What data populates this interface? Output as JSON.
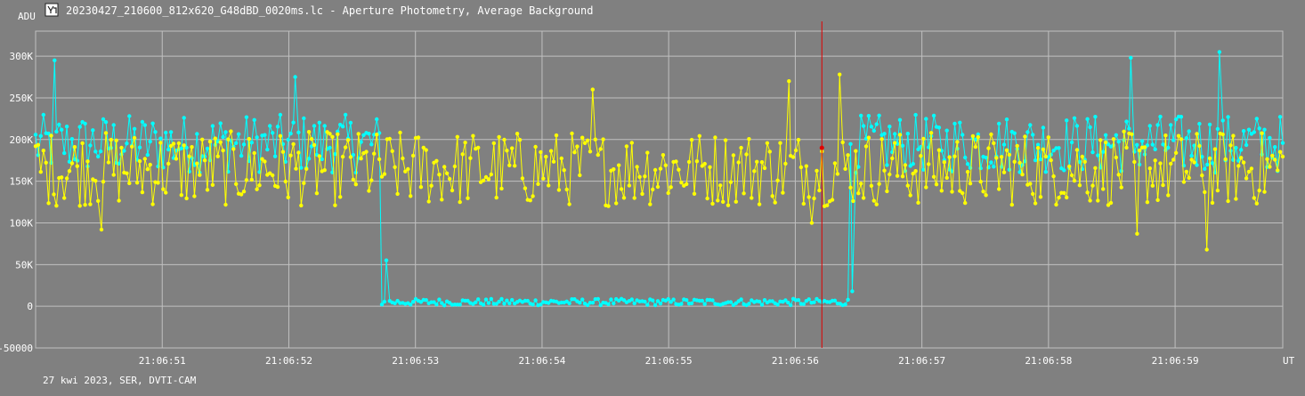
{
  "window": {
    "icon": "lightcurve-icon",
    "title": "20230427_210600_812x620_G48dBD_0020ms.lc - Aperture Photometry, Average Background"
  },
  "footer": {
    "caption": "27 kwi 2023, SER, DVTI-CAM"
  },
  "chart_data": {
    "type": "line",
    "title": "20230427_210600_812x620_G48dBD_0020ms.lc - Aperture Photometry, Average Background",
    "ylabel": "ADU",
    "xlabel": "UT",
    "ylim": [
      -50000,
      330000
    ],
    "xlim_seconds": [
      50.0,
      59.85
    ],
    "y_ticks": [
      -50000,
      0,
      50000,
      100000,
      150000,
      200000,
      250000,
      300000
    ],
    "y_tick_labels": [
      "-50000",
      "0",
      "50K",
      "100K",
      "150K",
      "200K",
      "250K",
      "300K"
    ],
    "x_ticks_seconds": [
      51,
      52,
      53,
      54,
      55,
      56,
      57,
      58,
      59
    ],
    "x_tick_labels": [
      "21:06:51",
      "21:06:52",
      "21:06:53",
      "21:06:54",
      "21:06:55",
      "21:06:56",
      "21:06:57",
      "21:06:58",
      "21:06:59"
    ],
    "x_time_prefix": "21:06:",
    "grid": true,
    "legend": "none",
    "cursor_line": {
      "time": "21:06:56.21",
      "color": "#e00000"
    },
    "background": "#808080",
    "grid_color": "#c0c0c0",
    "series": [
      {
        "color": "#00ffff",
        "role": "target",
        "baseline_adu": 195000,
        "baseline_scatter": 35000,
        "drop_start_time": "21:06:52.72",
        "drop_end_time": "21:06:56.43",
        "during_drop_adu": 5000,
        "during_drop_scatter": 4000,
        "highlighted_points": [
          {
            "time": "21:06:50.15",
            "adu": 295000
          },
          {
            "time": "21:06:52.05",
            "adu": 275000
          },
          {
            "time": "21:06:52.77",
            "adu": 55000
          },
          {
            "time": "21:06:56.45",
            "adu": 18000
          },
          {
            "time": "21:06:58.65",
            "adu": 298000
          },
          {
            "time": "21:06:59.35",
            "adu": 305000
          }
        ]
      },
      {
        "color": "#ffff00",
        "role": "comparison",
        "baseline_adu": 165000,
        "baseline_scatter": 45000,
        "highlighted_points": [
          {
            "time": "21:06:50.52",
            "adu": 92000
          },
          {
            "time": "21:06:54.40",
            "adu": 260000
          },
          {
            "time": "21:06:55.95",
            "adu": 270000
          },
          {
            "time": "21:06:56.13",
            "adu": 100000
          },
          {
            "time": "21:06:56.35",
            "adu": 278000
          },
          {
            "time": "21:06:58.70",
            "adu": 87000
          },
          {
            "time": "21:06:59.25",
            "adu": 68000
          }
        ]
      }
    ]
  }
}
